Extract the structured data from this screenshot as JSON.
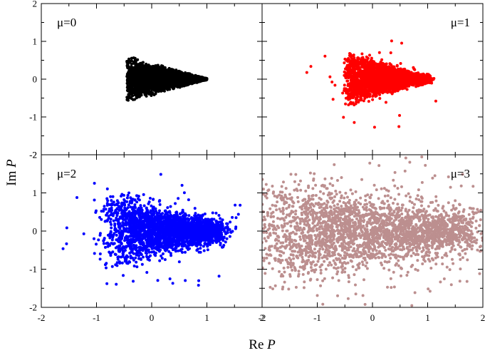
{
  "figure": {
    "xlabel_prefix": "Re ",
    "xlabel_var": "P",
    "ylabel_prefix": "Im ",
    "ylabel_var": "P"
  },
  "chart_data": [
    {
      "type": "scatter",
      "panel_label": "μ=0",
      "color": "#000000",
      "xlim": [
        -2,
        2
      ],
      "ylim": [
        -2,
        2
      ],
      "xticks": [
        -2,
        -1,
        0,
        1,
        2
      ],
      "yticks": [
        -2,
        -1,
        0,
        1,
        2
      ],
      "region": {
        "x_min": -0.45,
        "x_max": 1.0,
        "left_half_height": 0.62,
        "point_density": 0.0,
        "outliers": 0
      }
    },
    {
      "type": "scatter",
      "panel_label": "μ=1",
      "color": "#ff0000",
      "xlim": [
        -2,
        2
      ],
      "ylim": [
        -2,
        2
      ],
      "xticks": [
        -2,
        -1,
        0,
        1,
        2
      ],
      "yticks": [
        -2,
        -1,
        0,
        1,
        2
      ],
      "region": {
        "x_min": -0.45,
        "x_max": 1.0,
        "left_half_height": 0.75,
        "point_density": 0.05,
        "outliers": 30
      }
    },
    {
      "type": "scatter",
      "panel_label": "μ=2",
      "color": "#0000ff",
      "xlim": [
        -2,
        2
      ],
      "ylim": [
        -2,
        2
      ],
      "xticks": [
        -2,
        -1,
        0,
        1,
        2
      ],
      "yticks": [
        -2,
        -1,
        0,
        1,
        2
      ],
      "region": {
        "x_min": -0.7,
        "x_max": 1.2,
        "left_half_height": 1.0,
        "point_density": 0.15,
        "outliers": 80
      }
    },
    {
      "type": "scatter",
      "panel_label": "μ=3",
      "color": "#bc8f8f",
      "xlim": [
        -2,
        2
      ],
      "ylim": [
        -2,
        2
      ],
      "xticks": [
        -2,
        -1,
        0,
        1,
        2
      ],
      "yticks": [
        -2,
        -1,
        0,
        1,
        2
      ],
      "region": {
        "x_min": -1.9,
        "x_max": 1.7,
        "left_half_height": 1.5,
        "point_density": 0.3,
        "outliers": 220
      }
    }
  ]
}
